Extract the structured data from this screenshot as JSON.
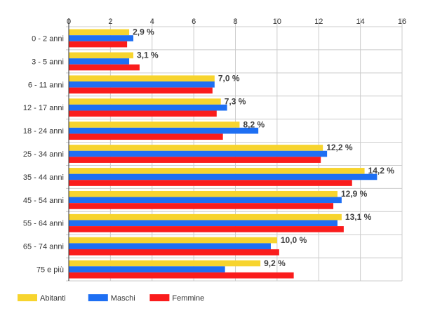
{
  "chart_data": {
    "type": "bar",
    "orientation": "horizontal",
    "categories": [
      "0 - 2 anni",
      "3 - 5 anni",
      "6 - 11 anni",
      "12 - 17 anni",
      "18 - 24 anni",
      "25 - 34 anni",
      "35 - 44 anni",
      "45 - 54 anni",
      "55 - 64 anni",
      "65 - 74 anni",
      "75 e più"
    ],
    "series": [
      {
        "name": "Abitanti",
        "color": "#f7d42e",
        "values": [
          2.9,
          3.1,
          7.0,
          7.3,
          8.2,
          12.2,
          14.2,
          12.9,
          13.1,
          10.0,
          9.2
        ]
      },
      {
        "name": "Maschi",
        "color": "#1e6ff3",
        "values": [
          3.1,
          2.9,
          7.0,
          7.6,
          9.1,
          12.4,
          14.8,
          13.1,
          12.9,
          9.7,
          7.5
        ]
      },
      {
        "name": "Femmine",
        "color": "#fa1c1c",
        "values": [
          2.8,
          3.4,
          6.9,
          7.1,
          7.4,
          12.1,
          13.6,
          12.7,
          13.2,
          10.1,
          10.8
        ]
      }
    ],
    "data_labels": [
      "2,9 %",
      "3,1 %",
      "7,0 %",
      "7,3 %",
      "8,2 %",
      "12,2 %",
      "14,2 %",
      "12,9 %",
      "13,1 %",
      "10,0 %",
      "9,2 %"
    ],
    "x_ticks": [
      "0",
      "2",
      "4",
      "6",
      "8",
      "10",
      "12",
      "14",
      "16"
    ],
    "xlim": [
      0,
      16
    ],
    "xaxis_position": "top",
    "grid": true,
    "legend_position": "bottom-left",
    "colors": {
      "grid": "#cccccc",
      "axis": "#333333",
      "text": "#333333",
      "data_label": "#404040"
    }
  }
}
